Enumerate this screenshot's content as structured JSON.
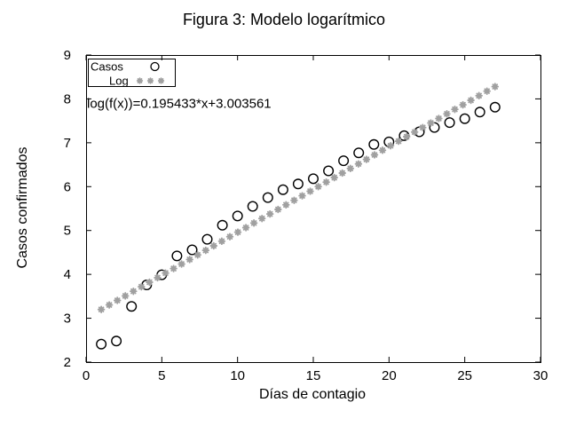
{
  "figure": {
    "title": "Figura 3: Modelo logarítmico"
  },
  "axes": {
    "x_label": "Días de contagio",
    "y_label": "Casos confirmados",
    "x_tick_labels": [
      "0",
      "5",
      "10",
      "15",
      "20",
      "25",
      "30"
    ],
    "y_tick_labels": [
      "2",
      "3",
      "4",
      "5",
      "6",
      "7",
      "8",
      "9"
    ]
  },
  "legend": {
    "entries": [
      {
        "label": "Casos",
        "marker": "open-circle"
      },
      {
        "label": "Log",
        "marker": "asterisk"
      }
    ]
  },
  "annotation": {
    "fit_equation": "log(f(x))=0.195433*x+3.003561"
  },
  "colors": {
    "casos_marker": "#000000",
    "log_marker": "#a0a0a0",
    "frame": "#000000",
    "background": "#ffffff"
  },
  "chart_data": {
    "type": "scatter",
    "title": "Figura 3: Modelo logarítmico",
    "xlabel": "Días de contagio",
    "ylabel": "Casos confirmados",
    "xlim": [
      0,
      30
    ],
    "ylim": [
      2,
      9
    ],
    "x_ticks": [
      0,
      5,
      10,
      15,
      20,
      25,
      30
    ],
    "y_ticks": [
      2,
      3,
      4,
      5,
      6,
      7,
      8,
      9
    ],
    "grid": false,
    "legend_position": "top-left",
    "series": [
      {
        "name": "Casos",
        "marker": "open-circle",
        "color": "#000000",
        "x": [
          1,
          2,
          3,
          4,
          5,
          6,
          7,
          8,
          9,
          10,
          11,
          12,
          13,
          14,
          15,
          16,
          17,
          18,
          19,
          20,
          21,
          22,
          23,
          24,
          25,
          26,
          27
        ],
        "y": [
          2.41,
          2.48,
          3.27,
          3.76,
          3.99,
          4.42,
          4.56,
          4.8,
          5.12,
          5.33,
          5.55,
          5.75,
          5.93,
          6.06,
          6.18,
          6.36,
          6.59,
          6.77,
          6.96,
          7.02,
          7.16,
          7.25,
          7.35,
          7.46,
          7.55,
          7.7,
          7.81
        ]
      },
      {
        "name": "Log",
        "marker": "asterisk",
        "color": "#a0a0a0",
        "equation_label": "log(f(x))=0.195433*x+3.003561",
        "fit": {
          "slope": 0.195433,
          "intercept": 3.003561,
          "x_start": 1,
          "x_end": 27,
          "samples": 50
        }
      }
    ]
  }
}
